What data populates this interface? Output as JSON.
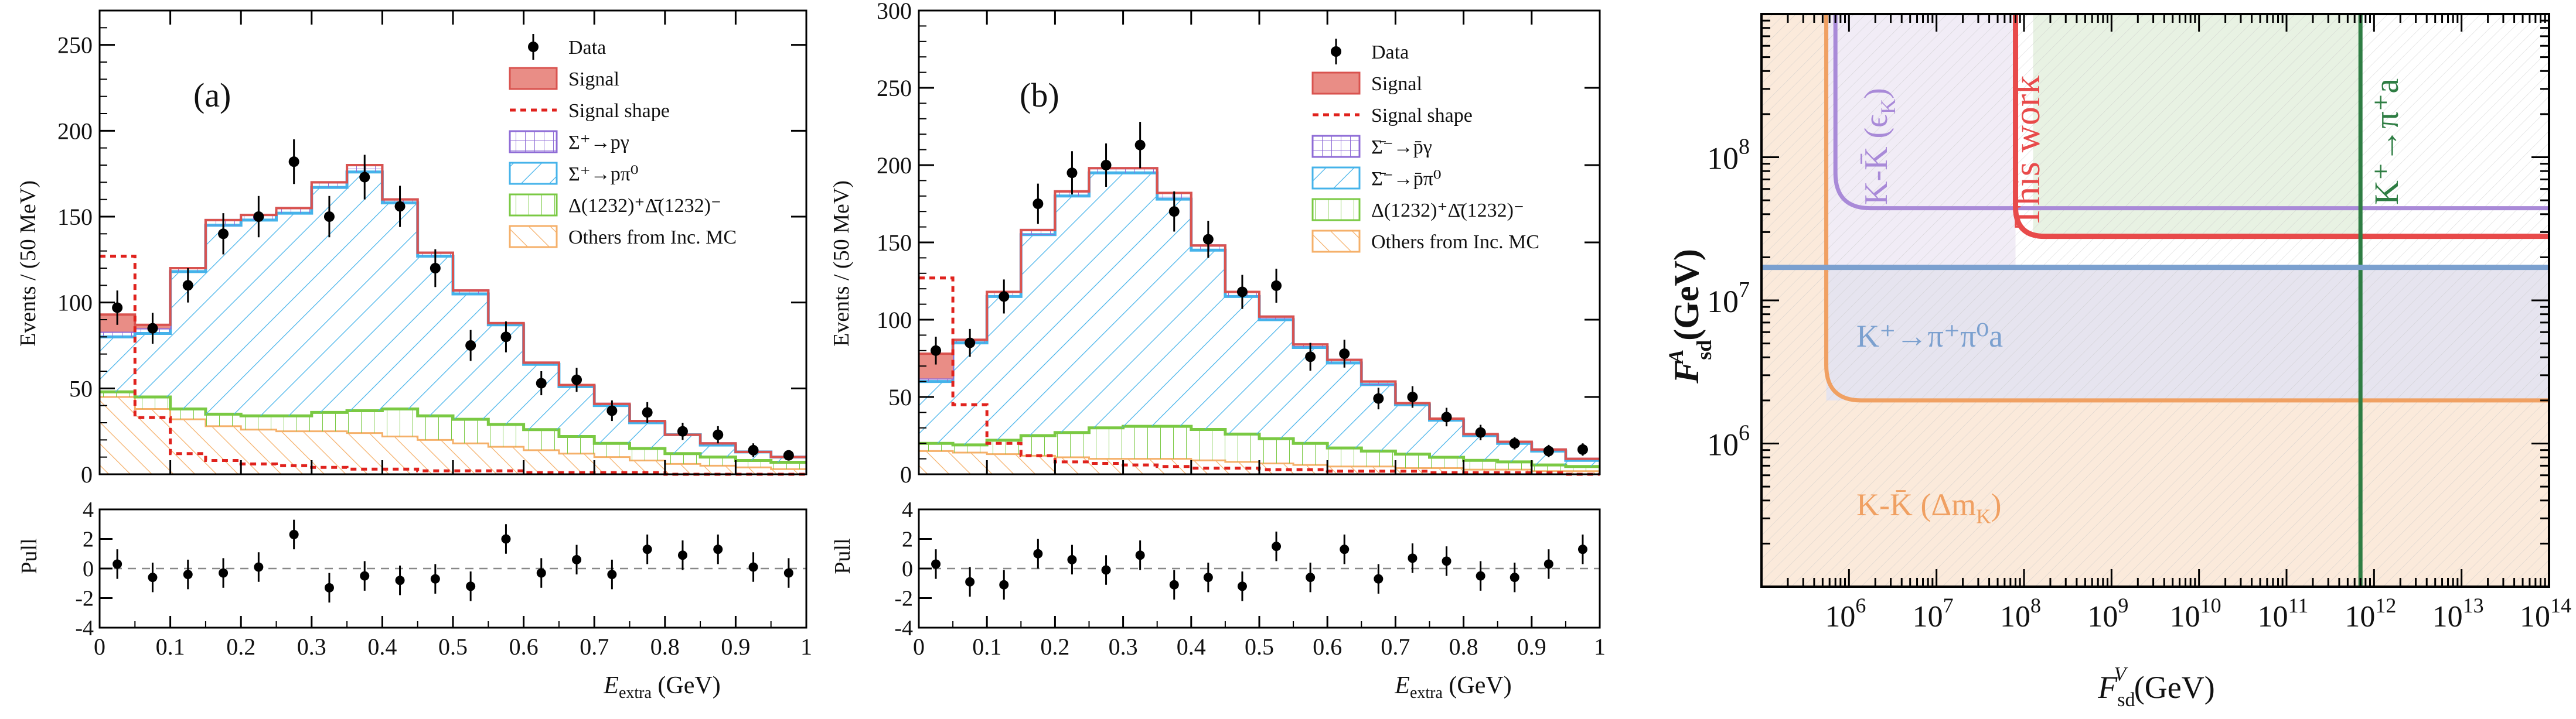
{
  "chart_data": [
    {
      "type": "histogram",
      "panel_label": "(a)",
      "xlabel": "E",
      "xlabel_sub": "extra",
      "xlabel_unit": " (GeV)",
      "ylabel": "Events / (50 MeV)",
      "xlim": [
        0,
        1
      ],
      "ylim": [
        0,
        270
      ],
      "yticks": [
        0,
        50,
        100,
        150,
        200,
        250
      ],
      "xticks": [
        0,
        0.1,
        0.2,
        0.3,
        0.4,
        0.5,
        0.6,
        0.7,
        0.8,
        0.9,
        1
      ],
      "xtick_labels": [
        "0",
        "0.1",
        "0.2",
        "0.3",
        "0.4",
        "0.5",
        "0.6",
        "0.7",
        "0.8",
        "0.9",
        "1"
      ],
      "bin_edges": [
        0,
        0.05,
        0.1,
        0.15,
        0.2,
        0.25,
        0.3,
        0.35,
        0.4,
        0.45,
        0.5,
        0.55,
        0.6,
        0.65,
        0.7,
        0.75,
        0.8,
        0.85,
        0.9,
        0.95,
        1.0
      ],
      "legend": {
        "data": "Data",
        "signal": "Signal",
        "signal_shape": "Signal shape",
        "bkg1": "Σ⁺→pγ",
        "bkg2": "Σ⁺→pπ⁰",
        "bkg3": "Δ(1232)⁺Δ̄(1232)⁻",
        "bkg4": "Others from Inc. MC"
      },
      "colors": {
        "bkg1": "#8e6bd6",
        "bkg2": "#45b3ea",
        "bkg3": "#7ac943",
        "bkg4": "#f5b06a",
        "signal": "#d9534f",
        "signal_fill": "#e98d86",
        "signal_shape": "#e0221d"
      },
      "stack_bkg4": [
        45,
        38,
        32,
        28,
        26,
        25,
        25,
        24,
        22,
        20,
        18,
        16,
        14,
        12,
        10,
        8,
        6,
        5,
        4,
        3
      ],
      "stack_bkg3": [
        48,
        45,
        38,
        35,
        34,
        34,
        36,
        37,
        38,
        34,
        32,
        29,
        26,
        22,
        18,
        15,
        12,
        10,
        8,
        7
      ],
      "stack_bkg2": [
        80,
        82,
        118,
        145,
        148,
        152,
        167,
        176,
        158,
        127,
        105,
        87,
        64,
        51,
        40,
        30,
        23,
        17,
        13,
        10
      ],
      "stack_bkg1": [
        83,
        85,
        120,
        148,
        151,
        155,
        170,
        180,
        160,
        129,
        107,
        88,
        65,
        52,
        41,
        31,
        23,
        18,
        13,
        10
      ],
      "stack_total": [
        93,
        87,
        120,
        148,
        151,
        155,
        170,
        180,
        160,
        129,
        107,
        88,
        65,
        52,
        41,
        31,
        23,
        18,
        13,
        10
      ],
      "signal_shape": [
        127,
        33,
        12,
        8,
        6,
        5,
        4,
        3,
        3,
        2,
        2,
        2,
        1,
        1,
        1,
        1,
        0,
        0,
        0,
        0
      ],
      "data_x": [
        0.025,
        0.075,
        0.125,
        0.175,
        0.225,
        0.275,
        0.325,
        0.375,
        0.425,
        0.475,
        0.525,
        0.575,
        0.625,
        0.675,
        0.725,
        0.775,
        0.825,
        0.875,
        0.925,
        0.975
      ],
      "data_y": [
        97,
        85,
        110,
        140,
        150,
        182,
        150,
        173,
        156,
        120,
        75,
        80,
        53,
        55,
        37,
        36,
        25,
        23,
        14,
        11
      ],
      "data_err": [
        10,
        9,
        10,
        12,
        12,
        13,
        12,
        13,
        12,
        11,
        9,
        9,
        7,
        7,
        6,
        6,
        5,
        5,
        4,
        3
      ],
      "pull": {
        "ylabel": "Pull",
        "ylim": [
          -4,
          4
        ],
        "yticks": [
          -4,
          -2,
          0,
          2,
          4
        ],
        "values": [
          0.3,
          -0.6,
          -0.4,
          -0.3,
          0.1,
          2.3,
          -1.3,
          -0.5,
          -0.8,
          -0.7,
          -1.2,
          2.0,
          -0.3,
          0.6,
          -0.4,
          1.3,
          0.9,
          1.3,
          0.1,
          -0.3
        ]
      }
    },
    {
      "type": "histogram",
      "panel_label": "(b)",
      "xlabel": "E",
      "xlabel_sub": "extra",
      "xlabel_unit": " (GeV)",
      "ylabel": "Events / (50 MeV)",
      "xlim": [
        0,
        1
      ],
      "ylim": [
        0,
        300
      ],
      "yticks": [
        0,
        50,
        100,
        150,
        200,
        250,
        300
      ],
      "xticks": [
        0,
        0.1,
        0.2,
        0.3,
        0.4,
        0.5,
        0.6,
        0.7,
        0.8,
        0.9,
        1
      ],
      "xtick_labels": [
        "0",
        "0.1",
        "0.2",
        "0.3",
        "0.4",
        "0.5",
        "0.6",
        "0.7",
        "0.8",
        "0.9",
        "1"
      ],
      "bin_edges": [
        0,
        0.05,
        0.1,
        0.15,
        0.2,
        0.25,
        0.3,
        0.35,
        0.4,
        0.45,
        0.5,
        0.55,
        0.6,
        0.65,
        0.7,
        0.75,
        0.8,
        0.85,
        0.9,
        0.95,
        1.0
      ],
      "legend": {
        "data": "Data",
        "signal": "Signal",
        "signal_shape": "Signal shape",
        "bkg1": "Σ̄⁻→p̄γ",
        "bkg2": "Σ̄⁻→p̄π⁰",
        "bkg3": "Δ(1232)⁺Δ̄(1232)⁻",
        "bkg4": "Others from Inc. MC"
      },
      "colors": {
        "bkg1": "#8e6bd6",
        "bkg2": "#45b3ea",
        "bkg3": "#7ac943",
        "bkg4": "#f5b06a",
        "signal": "#d9534f",
        "signal_fill": "#e98d86",
        "signal_shape": "#e0221d"
      },
      "stack_bkg4": [
        15,
        14,
        13,
        12,
        11,
        10,
        10,
        10,
        9,
        8,
        7,
        6,
        5,
        5,
        4,
        4,
        3,
        3,
        2,
        2
      ],
      "stack_bkg3": [
        20,
        19,
        22,
        25,
        27,
        30,
        31,
        31,
        29,
        26,
        23,
        20,
        17,
        15,
        13,
        11,
        9,
        8,
        6,
        5
      ],
      "stack_bkg2": [
        60,
        85,
        115,
        155,
        180,
        195,
        195,
        178,
        145,
        115,
        100,
        82,
        72,
        58,
        45,
        35,
        25,
        20,
        15,
        9
      ],
      "stack_bkg1": [
        62,
        87,
        118,
        158,
        183,
        198,
        198,
        182,
        148,
        118,
        102,
        84,
        74,
        60,
        46,
        36,
        26,
        21,
        16,
        10
      ],
      "stack_total": [
        78,
        87,
        118,
        158,
        183,
        198,
        198,
        182,
        148,
        118,
        102,
        84,
        74,
        60,
        46,
        36,
        26,
        21,
        16,
        10
      ],
      "signal_shape": [
        127,
        45,
        20,
        12,
        8,
        7,
        6,
        5,
        4,
        4,
        3,
        3,
        2,
        2,
        2,
        1,
        1,
        1,
        1,
        0
      ],
      "data_x": [
        0.025,
        0.075,
        0.125,
        0.175,
        0.225,
        0.275,
        0.325,
        0.375,
        0.425,
        0.475,
        0.525,
        0.575,
        0.625,
        0.675,
        0.725,
        0.775,
        0.825,
        0.875,
        0.925,
        0.975
      ],
      "data_y": [
        80,
        85,
        115,
        175,
        195,
        200,
        213,
        170,
        152,
        118,
        122,
        76,
        78,
        49,
        50,
        37,
        27,
        20,
        15,
        16
      ],
      "data_err": [
        9,
        9,
        11,
        13,
        14,
        14,
        15,
        13,
        12,
        11,
        11,
        9,
        9,
        7,
        7,
        6,
        5,
        4,
        4,
        4
      ],
      "pull": {
        "ylabel": "Pull",
        "ylim": [
          -4,
          4
        ],
        "yticks": [
          -4,
          -2,
          0,
          2,
          4
        ],
        "values": [
          0.3,
          -0.9,
          -1.1,
          1.0,
          0.6,
          -0.1,
          0.9,
          -1.1,
          -0.6,
          -1.2,
          1.5,
          -0.6,
          1.3,
          -0.7,
          0.7,
          0.5,
          -0.5,
          -0.6,
          0.3,
          1.3
        ]
      }
    },
    {
      "type": "line",
      "scale": "log-log",
      "xlabel": "F",
      "xlabel_sup": "V",
      "xlabel_sub": "sd",
      "xlabel_unit": " (GeV)",
      "ylabel": "F",
      "ylabel_sup": "A",
      "ylabel_sub": "sd",
      "ylabel_unit": " (GeV)",
      "xlim": [
        100000.0,
        100000000000000.0
      ],
      "ylim": [
        100000.0,
        1000000000.0
      ],
      "xtick_exponents": [
        6,
        7,
        8,
        9,
        10,
        11,
        12,
        13,
        14
      ],
      "ytick_exponents": [
        6,
        7,
        8
      ],
      "tick_base": "10",
      "colors": {
        "orange": "#f0a062",
        "purple": "#a98ad8",
        "red": "#e84a4a",
        "green": "#2e7d43",
        "blue": "#7ba0cf",
        "green_fill": "#e8f2e3"
      },
      "labels": {
        "kk_eps": "K-K̄ (ϵ",
        "kk_eps_sub": "K",
        "kk_eps_end": ")",
        "this_work": "This work",
        "kpia": "K⁺→π⁺a",
        "kpipi0a": "K⁺→π⁺π⁰a",
        "kk_dm": "K-K̄ (Δm",
        "kk_dm_sub": "K",
        "kk_dm_end": ")"
      },
      "curves": {
        "kk_dm": {
          "x_asym": 550000.0,
          "y_asym": 2000000.0
        },
        "kk_eps": {
          "x_asym": 700000.0,
          "y_asym": 44000000.0
        },
        "this_work": {
          "x_asym": 80000000.0,
          "y_asym": 28000000.0
        }
      },
      "lines": {
        "kpia_x": 700000000000.0,
        "kpipi0a_y": 17000000.0
      }
    }
  ]
}
